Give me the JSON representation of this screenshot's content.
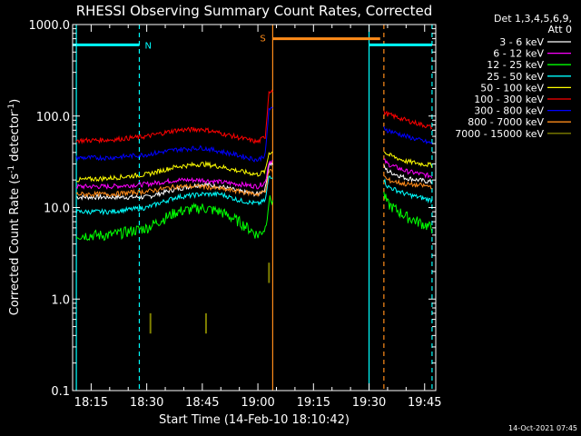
{
  "colors": {
    "background": "#000000",
    "axis": "#ffffff",
    "interval_cyan": "#00ffff",
    "interval_orange": "#ff8c1a"
  },
  "chart_data": {
    "type": "line",
    "title": "RHESSI Observing Summary Count Rates, Corrected",
    "xlabel": "Start Time (14-Feb-10 18:10:42)",
    "ylabel": "Corrected Count Rate (s⁻¹ detector⁻¹)",
    "ylabel_main": "Corrected Count Rate (s",
    "ylabel_sup1": "-1",
    "ylabel_mid": " detector",
    "ylabel_sup2": "-1",
    "ylabel_end": ")",
    "yscale": "log",
    "ylim": [
      0.1,
      1000
    ],
    "xlim": [
      "18:10",
      "19:48"
    ],
    "yticks": [
      "0.1",
      "1.0",
      "10.0",
      "100.0",
      "1000.0"
    ],
    "xticks": [
      "18:15",
      "18:30",
      "18:45",
      "19:00",
      "19:15",
      "19:30",
      "19:45"
    ],
    "legend_header": [
      "Det 1,3,4,5,6,9,",
      "Att 0"
    ],
    "legend_position": "right",
    "timestamp": "14-Oct-2021 07:45",
    "interval_markers": [
      {
        "label": "N",
        "start": "18:10",
        "end": "18:28",
        "level": 600,
        "color": "#00ffff"
      },
      {
        "label": "S",
        "start": "19:04",
        "end": "19:33",
        "level": 700,
        "color": "#ff8c1a"
      },
      {
        "label": "",
        "start": "19:30",
        "end": "19:47",
        "level": 600,
        "color": "#00ffff"
      }
    ],
    "vertical_lines": [
      {
        "time": "18:11",
        "color": "#00ffff",
        "style": "solid"
      },
      {
        "time": "18:28",
        "color": "#00ffff",
        "style": "dashed"
      },
      {
        "time": "19:04",
        "color": "#ff8c1a",
        "style": "solid"
      },
      {
        "time": "19:30",
        "color": "#00ffff",
        "style": "solid"
      },
      {
        "time": "19:34",
        "color": "#ff8c1a",
        "style": "dashed"
      },
      {
        "time": "19:47",
        "color": "#00ffff",
        "style": "dashed"
      }
    ],
    "gaps": [
      [
        "19:04",
        "19:34"
      ]
    ],
    "series": [
      {
        "name": "3 - 6 keV",
        "color": "#ffffff",
        "x": [
          "18:11",
          "18:20",
          "18:30",
          "18:38",
          "18:45",
          "18:50",
          "18:55",
          "19:00",
          "19:02",
          "19:03",
          "19:34",
          "19:35",
          "19:40",
          "19:47"
        ],
        "values": [
          13,
          13,
          13,
          16,
          18,
          17,
          15,
          14,
          16,
          30,
          28,
          25,
          21,
          19
        ]
      },
      {
        "name": "6 - 12 keV",
        "color": "#ff00ff",
        "x": [
          "18:11",
          "18:20",
          "18:30",
          "18:38",
          "18:45",
          "18:50",
          "18:55",
          "19:00",
          "19:02",
          "19:03",
          "19:34",
          "19:35",
          "19:40",
          "19:47"
        ],
        "values": [
          17,
          17,
          18,
          20,
          20,
          19,
          18,
          17,
          19,
          32,
          33,
          30,
          25,
          22
        ]
      },
      {
        "name": "12 - 25 keV",
        "color": "#00ff00",
        "x": [
          "18:11",
          "18:20",
          "18:30",
          "18:38",
          "18:45",
          "18:50",
          "18:55",
          "19:00",
          "19:02",
          "19:03",
          "19:34",
          "19:35",
          "19:40",
          "19:47"
        ],
        "values": [
          5,
          5,
          6,
          9,
          10,
          9,
          7,
          5,
          6,
          12,
          14,
          11,
          8,
          6
        ]
      },
      {
        "name": "25 - 50 keV",
        "color": "#00ffff",
        "x": [
          "18:11",
          "18:20",
          "18:30",
          "18:38",
          "18:45",
          "18:50",
          "18:55",
          "19:00",
          "19:02",
          "19:03",
          "19:34",
          "19:35",
          "19:40",
          "19:47"
        ],
        "values": [
          9,
          9,
          10,
          13,
          14,
          14,
          12,
          11,
          12,
          22,
          20,
          17,
          14,
          12
        ]
      },
      {
        "name": "50 - 100 keV",
        "color": "#ffff00",
        "x": [
          "18:11",
          "18:20",
          "18:30",
          "18:38",
          "18:45",
          "18:50",
          "18:55",
          "19:00",
          "19:02",
          "19:03",
          "19:34",
          "19:35",
          "19:40",
          "19:47"
        ],
        "values": [
          20,
          21,
          23,
          28,
          30,
          28,
          25,
          23,
          25,
          40,
          42,
          38,
          32,
          29
        ]
      },
      {
        "name": "100 - 300 keV",
        "color": "#ff0000",
        "x": [
          "18:11",
          "18:20",
          "18:30",
          "18:38",
          "18:45",
          "18:50",
          "18:55",
          "19:00",
          "19:02",
          "19:03",
          "19:34",
          "19:35",
          "19:40",
          "19:47"
        ],
        "values": [
          54,
          55,
          60,
          70,
          72,
          65,
          58,
          52,
          60,
          190,
          110,
          105,
          90,
          75
        ]
      },
      {
        "name": "300 - 800 keV",
        "color": "#0000ff",
        "x": [
          "18:11",
          "18:20",
          "18:30",
          "18:38",
          "18:45",
          "18:50",
          "18:55",
          "19:00",
          "19:02",
          "19:03",
          "19:34",
          "19:35",
          "19:40",
          "19:47"
        ],
        "values": [
          35,
          35,
          38,
          43,
          45,
          41,
          37,
          33,
          38,
          120,
          75,
          70,
          60,
          50
        ]
      },
      {
        "name": "800 - 7000 keV",
        "color": "#ff8c1a",
        "x": [
          "18:11",
          "18:20",
          "18:30",
          "18:38",
          "18:45",
          "18:50",
          "18:55",
          "19:00",
          "19:02",
          "19:03",
          "19:34",
          "19:35",
          "19:40",
          "19:47"
        ],
        "values": [
          14,
          14,
          15,
          17,
          17,
          16,
          15,
          14,
          15,
          25,
          22,
          20,
          18,
          17
        ]
      },
      {
        "name": "7000 - 15000 keV",
        "color": "#808000",
        "x": [
          "18:31",
          "18:46",
          "19:03"
        ],
        "values": [
          0.7,
          0.7,
          2.5
        ]
      }
    ]
  }
}
